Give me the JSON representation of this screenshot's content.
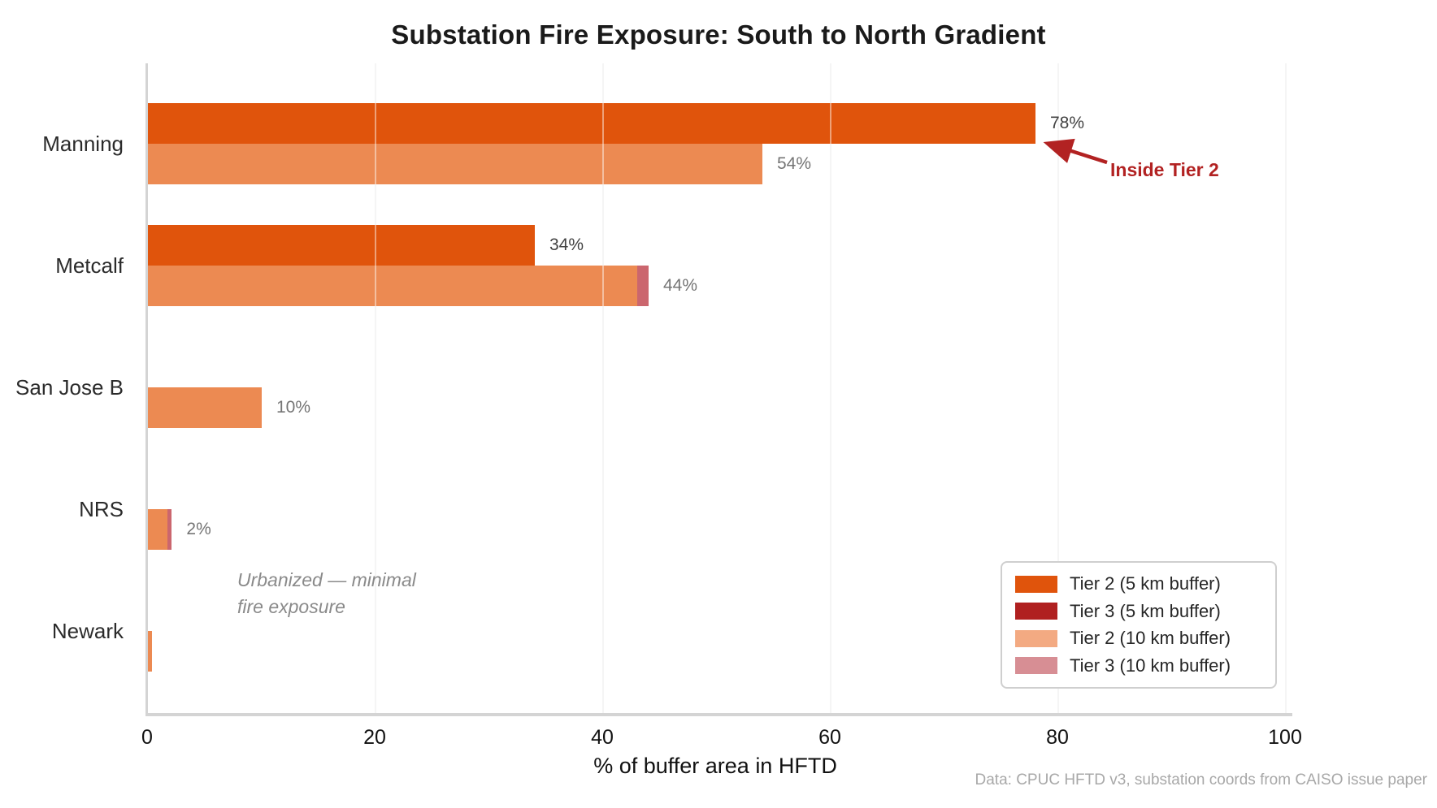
{
  "title": "Substation Fire Exposure: South to North Gradient",
  "source_note": "Data: CPUC HFTD v3, substation coords from CAISO issue paper",
  "annotations": {
    "inside_tier2": "Inside Tier 2",
    "urbanized_line1": "Urbanized — minimal",
    "urbanized_line2": "fire exposure"
  },
  "colors": {
    "tier2_5km_bar": "#e0540c",
    "tier3_5km_bar": "#b02020",
    "tier2_10km_bar": "#ec8a52",
    "tier3_10km_bar": "#cb666e",
    "annotation_red": "#b22222",
    "axis_gray": "#d4d4d4"
  },
  "chart_data": {
    "type": "bar",
    "orientation": "horizontal",
    "title": "Substation Fire Exposure: South to North Gradient",
    "xlabel": "% of buffer area in HFTD",
    "xlim": [
      0,
      100
    ],
    "x_ticks": [
      0,
      20,
      40,
      60,
      80,
      100
    ],
    "grid": true,
    "legend_position": "lower right",
    "categories": [
      "Manning",
      "Metcalf",
      "San Jose B",
      "NRS",
      "Newark"
    ],
    "groups": [
      {
        "category": "Manning",
        "bar_5km": {
          "tier2": 78,
          "tier3": 0,
          "label": "78%"
        },
        "bar_10km": {
          "tier2": 54,
          "tier3": 0,
          "label": "54%"
        }
      },
      {
        "category": "Metcalf",
        "bar_5km": {
          "tier2": 34,
          "tier3": 0,
          "label": "34%"
        },
        "bar_10km": {
          "tier2": 43,
          "tier3": 1,
          "label": "44%"
        }
      },
      {
        "category": "San Jose B",
        "bar_5km": {
          "tier2": 0,
          "tier3": 0,
          "label": ""
        },
        "bar_10km": {
          "tier2": 10,
          "tier3": 0,
          "label": "10%"
        }
      },
      {
        "category": "NRS",
        "bar_5km": {
          "tier2": 0,
          "tier3": 0,
          "label": ""
        },
        "bar_10km": {
          "tier2": 1.7,
          "tier3": 0.4,
          "label": "2%"
        }
      },
      {
        "category": "Newark",
        "bar_5km": {
          "tier2": 0,
          "tier3": 0,
          "label": ""
        },
        "bar_10km": {
          "tier2": 0.35,
          "tier3": 0,
          "label": ""
        }
      }
    ],
    "legend": [
      {
        "label": "Tier 2 (5 km buffer)",
        "swatch_color": "#e0540c"
      },
      {
        "label": "Tier 3 (5 km buffer)",
        "swatch_color": "#b02020"
      },
      {
        "label": "Tier 2 (10 km buffer)",
        "swatch_color": "#f3aa82"
      },
      {
        "label": "Tier 3 (10 km buffer)",
        "swatch_color": "#d78e94"
      }
    ]
  }
}
